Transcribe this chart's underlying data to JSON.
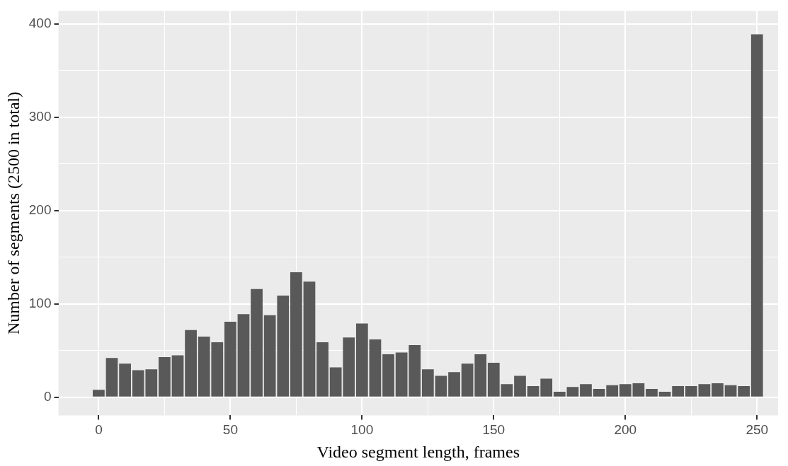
{
  "chart_data": {
    "type": "histogram",
    "xlabel": "Video segment length, frames",
    "ylabel": "Number of segments (2500 in total)",
    "bins": [
      -2.5,
      2.5,
      7.5,
      12.5,
      17.5,
      22.5,
      27.5,
      32.5,
      37.5,
      42.5,
      47.5,
      52.5,
      57.5,
      62.5,
      67.5,
      72.5,
      77.5,
      82.5,
      87.5,
      92.5,
      97.5,
      102.5,
      107.5,
      112.5,
      117.5,
      122.5,
      127.5,
      132.5,
      137.5,
      142.5,
      147.5,
      152.5,
      157.5,
      162.5,
      167.5,
      172.5,
      177.5,
      182.5,
      187.5,
      192.5,
      197.5,
      202.5,
      207.5,
      212.5,
      217.5,
      222.5,
      227.5,
      232.5,
      237.5,
      242.5,
      247.5,
      252.5
    ],
    "values": [
      8,
      42,
      36,
      29,
      30,
      43,
      45,
      72,
      65,
      59,
      81,
      89,
      116,
      88,
      109,
      134,
      124,
      59,
      32,
      64,
      79,
      62,
      46,
      48,
      56,
      30,
      23,
      27,
      36,
      46,
      37,
      14,
      23,
      12,
      20,
      6,
      11,
      14,
      9,
      13,
      14,
      15,
      9,
      6,
      12,
      12,
      14,
      15,
      13,
      12,
      389
    ],
    "color": "#595959",
    "xlim": [
      -15.3,
      258
    ],
    "ylim": [
      -19.4,
      414
    ],
    "xticks": [
      0,
      {
        "value": 25,
        "label": null
      },
      50,
      {
        "value": 75,
        "label": null
      },
      100,
      {
        "value": 125,
        "label": null
      },
      150,
      {
        "value": 175,
        "label": null
      },
      200,
      {
        "value": 225,
        "label": null
      },
      250
    ],
    "yticks": [
      0,
      {
        "value": 50,
        "label": null
      },
      100,
      {
        "value": 150,
        "label": null
      },
      200,
      {
        "value": 250,
        "label": null
      },
      300,
      {
        "value": 350,
        "label": null
      },
      400
    ],
    "grid": true
  }
}
